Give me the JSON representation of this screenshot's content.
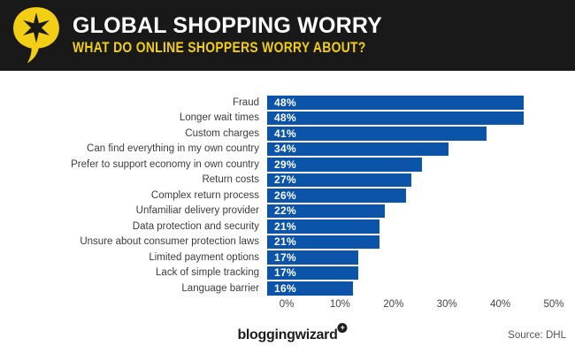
{
  "header": {
    "title": "GLOBAL SHOPPING WORRY",
    "subtitle": "WHAT DO ONLINE SHOPPERS WORRY ABOUT?",
    "bg_color": "#191919",
    "title_color": "#FFFFFF",
    "accent_color": "#F2CE14",
    "icon": "speech-bubble-star-icon"
  },
  "chart_data": {
    "type": "bar",
    "orientation": "horizontal",
    "categories": [
      "Fraud",
      "Longer wait times",
      "Custom charges",
      "Can find everything in my own country",
      "Prefer to support economy in own country",
      "Return costs",
      "Complex return process",
      "Unfamiliar delivery provider",
      "Data protection and security",
      "Unsure about consumer protection laws",
      "Limited payment options",
      "Lack of simple tracking",
      "Language barrier"
    ],
    "values": [
      48,
      48,
      41,
      34,
      29,
      27,
      26,
      22,
      21,
      21,
      17,
      17,
      16
    ],
    "value_labels": [
      "48%",
      "48%",
      "41%",
      "34%",
      "29%",
      "27%",
      "26%",
      "22%",
      "21%",
      "21%",
      "17%",
      "17%",
      "16%"
    ],
    "x_ticks": [
      "0%",
      "10%",
      "20%",
      "30%",
      "40%",
      "50%"
    ],
    "xlim": [
      0,
      50
    ],
    "bar_color": "#0B54A9",
    "value_label_color": "#FFFFFF",
    "label_color": "#3C3C3C",
    "grid": false,
    "legend": false
  },
  "footer": {
    "brand": "bloggingwizard",
    "badge_glyph": "+",
    "source": "Source: DHL"
  }
}
